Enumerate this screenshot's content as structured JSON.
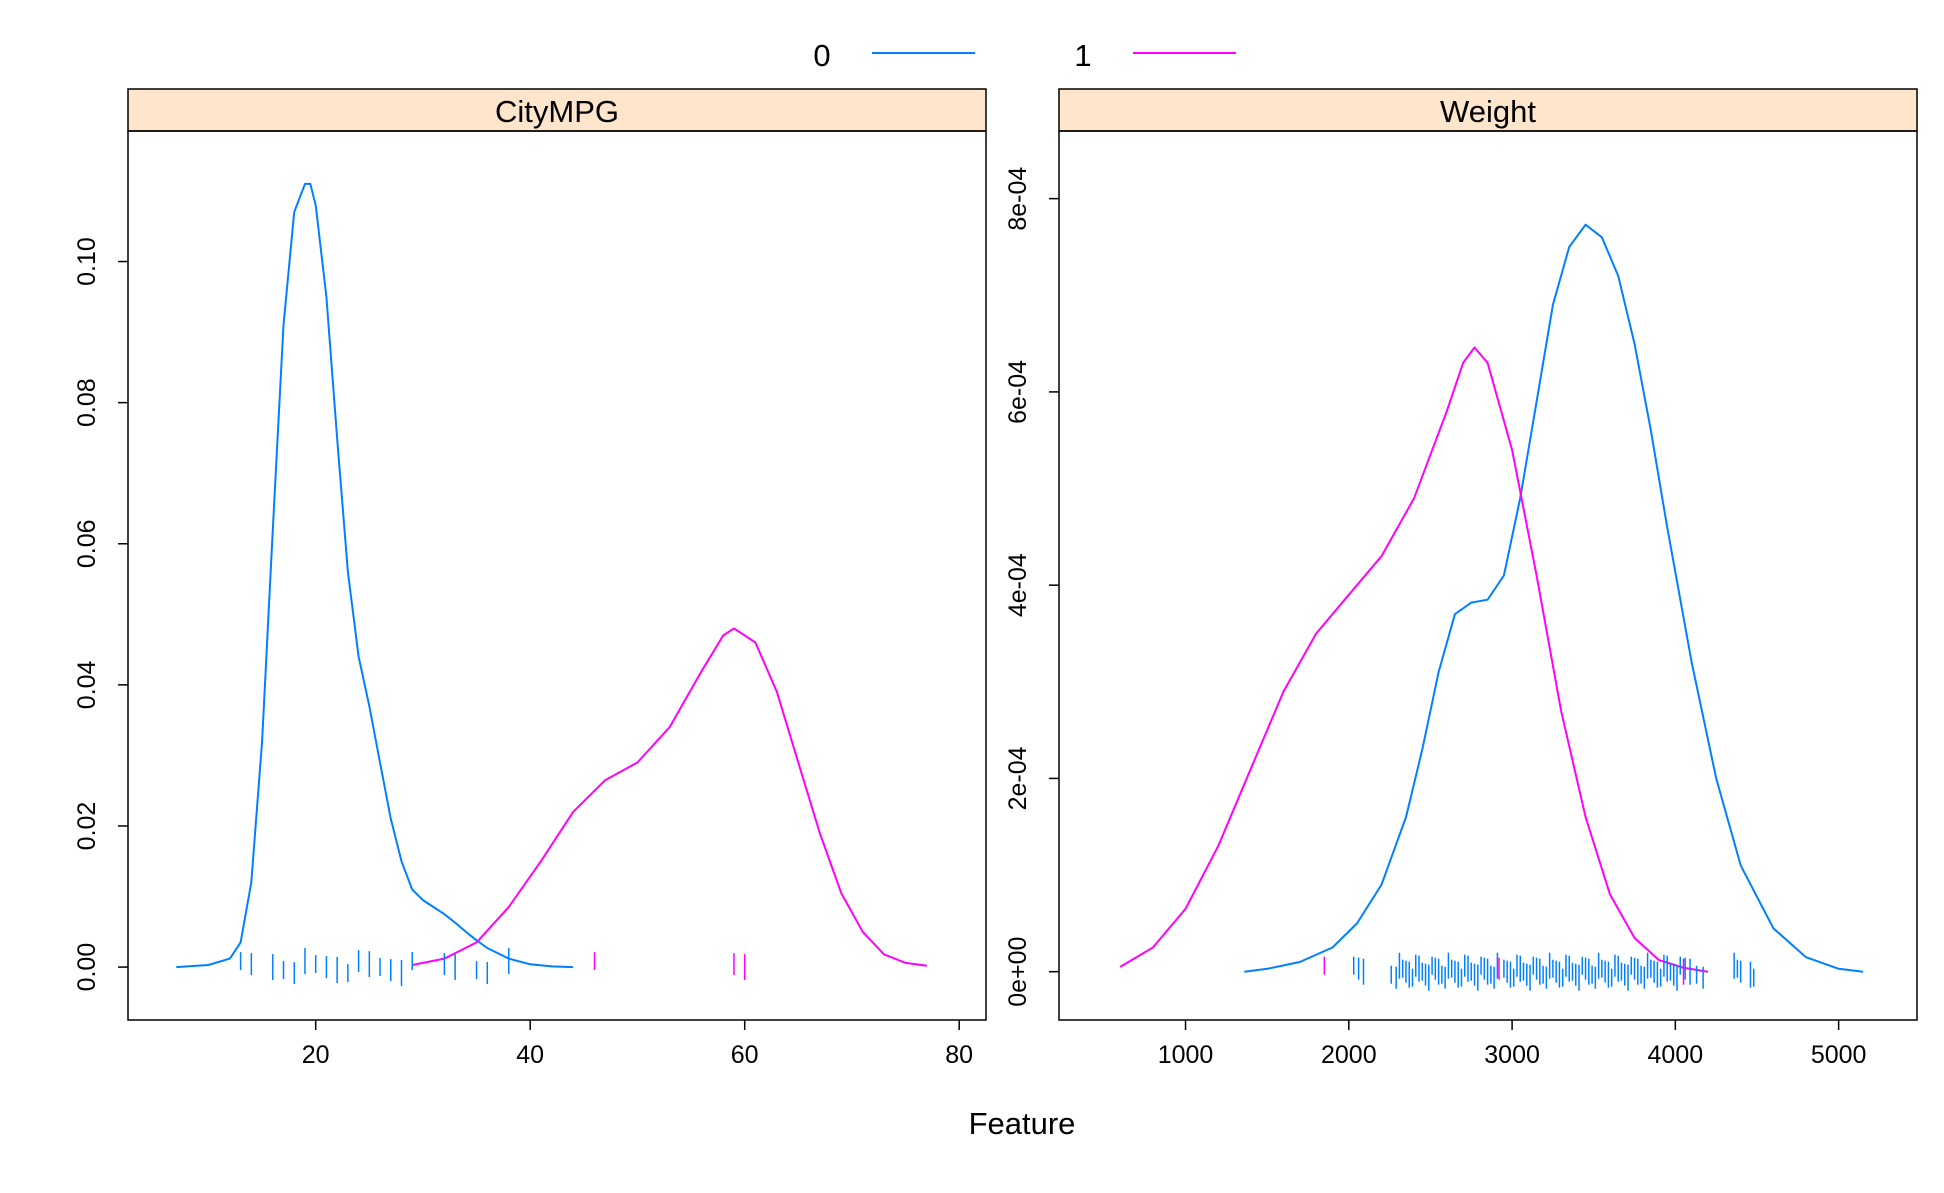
{
  "chart_data": {
    "type": "line",
    "subtype": "density-plot-with-rug",
    "xlabel": "Feature",
    "legend": {
      "placement": "top-center",
      "entries": [
        {
          "label": "0",
          "color": "#0080ff"
        },
        {
          "label": "1",
          "color": "#ff00ff"
        }
      ]
    },
    "strip_color": "#ffe5cc",
    "panels": [
      {
        "title": "CityMPG",
        "xlim": [
          2.5,
          82.5
        ],
        "ylim": [
          -0.0075,
          0.1185
        ],
        "x_ticks": [
          20,
          40,
          60,
          80
        ],
        "x_tick_labels": [
          "20",
          "40",
          "60",
          "80"
        ],
        "y_ticks": [
          0,
          0.02,
          0.04,
          0.06,
          0.08,
          0.1
        ],
        "y_tick_labels": [
          "0.00",
          "0.02",
          "0.04",
          "0.06",
          "0.08",
          "0.10"
        ],
        "series": [
          {
            "name": "0",
            "color": "#0080ff",
            "x": [
              7,
              10,
              12,
              13,
              14,
              15,
              16,
              17,
              18,
              19,
              19.5,
              20,
              21,
              22,
              23,
              24,
              25,
              26,
              27,
              28,
              29,
              30,
              31,
              32,
              33,
              34,
              35,
              36,
              38,
              40,
              42,
              44
            ],
            "y": [
              0.0,
              0.0003,
              0.0012,
              0.0035,
              0.012,
              0.032,
              0.062,
              0.091,
              0.107,
              0.111,
              0.111,
              0.108,
              0.095,
              0.075,
              0.056,
              0.044,
              0.037,
              0.029,
              0.021,
              0.015,
              0.011,
              0.0095,
              0.0085,
              0.0075,
              0.0063,
              0.005,
              0.0038,
              0.0027,
              0.0012,
              0.0004,
              0.0001,
              0.0
            ]
          },
          {
            "name": "1",
            "color": "#ff00ff",
            "x": [
              29,
              32,
              35,
              38,
              41,
              44,
              47,
              50,
              53,
              56,
              58,
              59,
              61,
              63,
              65,
              67,
              69,
              71,
              73,
              75,
              77
            ],
            "y": [
              0.0003,
              0.0012,
              0.0035,
              0.0085,
              0.015,
              0.022,
              0.0265,
              0.029,
              0.034,
              0.042,
              0.047,
              0.048,
              0.046,
              0.039,
              0.029,
              0.019,
              0.0105,
              0.005,
              0.0018,
              0.0006,
              0.0002
            ]
          }
        ],
        "rug": [
          {
            "series": "0",
            "color": "#0080ff",
            "x": [
              13,
              14,
              16,
              17,
              18,
              19,
              20,
              21,
              22,
              23,
              24,
              25,
              26,
              27,
              28,
              29,
              32,
              33,
              35,
              36,
              38
            ]
          },
          {
            "series": "1",
            "color": "#ff00ff",
            "x": [
              46,
              59,
              60
            ]
          }
        ]
      },
      {
        "title": "Weight",
        "xlim": [
          225,
          5480
        ],
        "ylim": [
          -5e-05,
          0.00087
        ],
        "x_ticks": [
          1000,
          2000,
          3000,
          4000,
          5000
        ],
        "x_tick_labels": [
          "1000",
          "2000",
          "3000",
          "4000",
          "5000"
        ],
        "y_ticks": [
          0,
          0.0002,
          0.0004,
          0.0006,
          0.0008
        ],
        "y_tick_labels": [
          "0e+00",
          "2e-04",
          "4e-04",
          "6e-04",
          "8e-04"
        ],
        "series": [
          {
            "name": "0",
            "color": "#0080ff",
            "x": [
              1360,
              1500,
              1700,
              1900,
              2050,
              2200,
              2350,
              2450,
              2550,
              2650,
              2750,
              2850,
              2950,
              3050,
              3150,
              3250,
              3350,
              3450,
              3550,
              3650,
              3750,
              3850,
              3950,
              4100,
              4250,
              4400,
              4600,
              4800,
              5000,
              5150
            ],
            "y": [
              0.0,
              3e-06,
              1e-05,
              2.5e-05,
              5e-05,
              9e-05,
              0.00016,
              0.00023,
              0.00031,
              0.00037,
              0.000382,
              0.000385,
              0.00041,
              0.00049,
              0.00059,
              0.00069,
              0.00075,
              0.000773,
              0.00076,
              0.00072,
              0.00065,
              0.00056,
              0.00046,
              0.00032,
              0.0002,
              0.00011,
              4.5e-05,
              1.5e-05,
              3e-06,
              0.0
            ]
          },
          {
            "name": "1",
            "color": "#ff00ff",
            "x": [
              600,
              800,
              1000,
              1200,
              1400,
              1600,
              1800,
              2000,
              2200,
              2400,
              2600,
              2700,
              2770,
              2850,
              3000,
              3150,
              3300,
              3450,
              3600,
              3750,
              3900,
              4050,
              4200
            ],
            "y": [
              5e-06,
              2.5e-05,
              6.5e-05,
              0.00013,
              0.00021,
              0.00029,
              0.00035,
              0.00039,
              0.00043,
              0.00049,
              0.00058,
              0.00063,
              0.000646,
              0.00063,
              0.00054,
              0.00041,
              0.00027,
              0.00016,
              8e-05,
              3.5e-05,
              1.2e-05,
              4e-06,
              0.0
            ]
          }
        ],
        "rug": [
          {
            "series": "0",
            "color": "#0080ff",
            "x": [
              2030,
              2060,
              2090,
              2260,
              2290,
              2310,
              2330,
              2350,
              2370,
              2390,
              2410,
              2430,
              2450,
              2470,
              2490,
              2510,
              2530,
              2550,
              2570,
              2590,
              2610,
              2630,
              2650,
              2670,
              2690,
              2710,
              2730,
              2750,
              2770,
              2790,
              2810,
              2830,
              2850,
              2870,
              2890,
              2910,
              2950,
              2970,
              2990,
              3010,
              3030,
              3050,
              3070,
              3090,
              3110,
              3130,
              3150,
              3170,
              3190,
              3210,
              3230,
              3250,
              3270,
              3290,
              3310,
              3330,
              3350,
              3370,
              3390,
              3410,
              3430,
              3450,
              3470,
              3490,
              3510,
              3530,
              3550,
              3570,
              3590,
              3610,
              3630,
              3650,
              3670,
              3690,
              3710,
              3730,
              3750,
              3770,
              3790,
              3810,
              3830,
              3850,
              3870,
              3890,
              3910,
              3930,
              3950,
              3970,
              3990,
              4010,
              4030,
              4060,
              4090,
              4130,
              4170,
              4360,
              4380,
              4400,
              4460,
              4480
            ]
          },
          {
            "series": "1",
            "color": "#ff00ff",
            "x": [
              1850,
              2920,
              4050
            ]
          }
        ]
      }
    ]
  }
}
